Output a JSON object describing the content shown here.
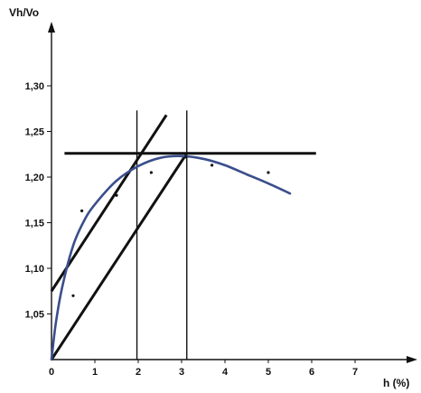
{
  "chart_data": {
    "type": "line",
    "title": "",
    "xlabel": "h (%)",
    "ylabel": "Vh/Vo",
    "xlim": [
      0,
      7.5
    ],
    "ylim": [
      1.0,
      1.35
    ],
    "x_ticks": [
      "0",
      "1",
      "2",
      "3",
      "4",
      "5",
      "6",
      "7"
    ],
    "y_ticks": [
      "1,05",
      "1,10",
      "1,15",
      "1,20",
      "1,25",
      "1,30"
    ],
    "series": [
      {
        "kind": "fitted-curve",
        "color": "#3a4e8c",
        "x": [
          0.0,
          0.1,
          0.25,
          0.5,
          0.75,
          1.0,
          1.5,
          2.0,
          2.5,
          3.0,
          3.5,
          4.0,
          4.5,
          5.0,
          5.5
        ],
        "y": [
          1.0,
          1.04,
          1.08,
          1.125,
          1.152,
          1.17,
          1.196,
          1.212,
          1.221,
          1.223,
          1.22,
          1.213,
          1.203,
          1.193,
          1.182
        ]
      },
      {
        "kind": "measured-points",
        "color": "#111111",
        "x": [
          0.5,
          0.7,
          1.5,
          2.3,
          3.1,
          3.7,
          5.0
        ],
        "y": [
          1.07,
          1.163,
          1.18,
          1.205,
          1.222,
          1.213,
          1.205
        ]
      }
    ],
    "reference_lines": [
      {
        "kind": "horizontal",
        "y": 1.226,
        "x_range": [
          0.3,
          6.1
        ]
      },
      {
        "kind": "vertical",
        "x": 1.97,
        "y_range": [
          1.0,
          1.273
        ]
      },
      {
        "kind": "vertical",
        "x": 3.12,
        "y_range": [
          1.0,
          1.273
        ]
      },
      {
        "kind": "diagonal",
        "points": [
          [
            0,
            1.075
          ],
          [
            2.65,
            1.268
          ]
        ]
      },
      {
        "kind": "diagonal",
        "points": [
          [
            0,
            1.0
          ],
          [
            3.12,
            1.226
          ]
        ]
      }
    ],
    "grid": false,
    "legend": "none"
  }
}
